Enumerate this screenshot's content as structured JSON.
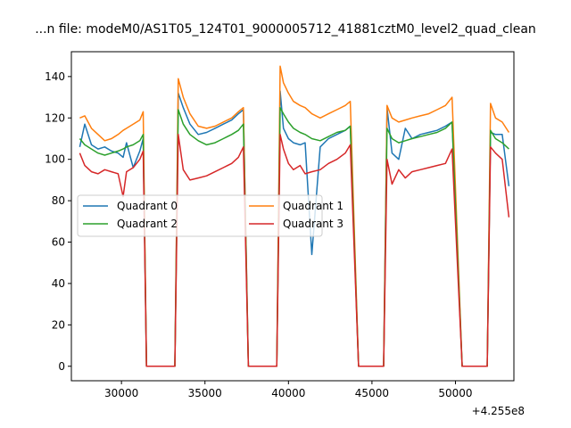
{
  "chart_data": {
    "type": "line",
    "title": "...n file: modeM0/AS1T05_124T01_9000005712_41881cztM0_level2_quad_clean",
    "xlabel": "",
    "ylabel": "",
    "x_offset_label": "+4.255e8",
    "xlim": [
      27000,
      53500
    ],
    "ylim": [
      -7,
      152
    ],
    "x_ticks": [
      30000,
      35000,
      40000,
      45000,
      50000
    ],
    "x_tick_labels": [
      "30000",
      "35000",
      "40000",
      "45000",
      "50000"
    ],
    "y_ticks": [
      0,
      20,
      40,
      60,
      80,
      100,
      120,
      140
    ],
    "y_tick_labels": [
      "0",
      "20",
      "40",
      "60",
      "80",
      "100",
      "120",
      "140"
    ],
    "grid": false,
    "legend_position": "center-left",
    "series": [
      {
        "name": "Quadrant 0",
        "color": "#1f77b4",
        "x": [
          27500,
          27800,
          28200,
          28600,
          29000,
          29400,
          29800,
          30100,
          30300,
          30700,
          31100,
          31300,
          31500,
          32000,
          32600,
          33000,
          33200,
          33400,
          33700,
          34100,
          34600,
          35100,
          35600,
          36100,
          36600,
          37000,
          37300,
          37600,
          38100,
          38700,
          39300,
          39500,
          39700,
          40000,
          40300,
          40700,
          41000,
          41400,
          41900,
          42400,
          42900,
          43400,
          43700,
          44200,
          44800,
          45400,
          45700,
          45900,
          46200,
          46600,
          47000,
          47400,
          47900,
          48400,
          48900,
          49400,
          49800,
          50400,
          51000,
          51600,
          51900,
          52100,
          52400,
          52800,
          53200
        ],
        "y": [
          106,
          117,
          107,
          105,
          106,
          104,
          103,
          101,
          108,
          96,
          104,
          110,
          0,
          0,
          0,
          0,
          0,
          132,
          125,
          117,
          112,
          113,
          115,
          117,
          119,
          122,
          124,
          0,
          0,
          0,
          0,
          133,
          115,
          110,
          108,
          107,
          108,
          54,
          106,
          110,
          112,
          114,
          116,
          0,
          0,
          0,
          0,
          125,
          103,
          100,
          115,
          110,
          112,
          113,
          114,
          116,
          118,
          0,
          0,
          0,
          0,
          113,
          112,
          112,
          87
        ]
      },
      {
        "name": "Quadrant 1",
        "color": "#ff7f0e",
        "x": [
          27500,
          27800,
          28200,
          28600,
          29000,
          29400,
          29800,
          30100,
          30300,
          30700,
          31100,
          31300,
          31500,
          32000,
          32600,
          33000,
          33200,
          33400,
          33700,
          34100,
          34600,
          35100,
          35600,
          36100,
          36600,
          37000,
          37300,
          37600,
          38100,
          38700,
          39300,
          39500,
          39700,
          40000,
          40300,
          40700,
          41000,
          41400,
          41900,
          42400,
          42900,
          43400,
          43700,
          44200,
          44800,
          45400,
          45700,
          45900,
          46200,
          46600,
          47000,
          47400,
          47900,
          48400,
          48900,
          49400,
          49800,
          50400,
          51000,
          51600,
          51900,
          52100,
          52400,
          52800,
          53200
        ],
        "y": [
          120,
          121,
          115,
          112,
          109,
          110,
          112,
          114,
          115,
          117,
          119,
          123,
          0,
          0,
          0,
          0,
          0,
          139,
          130,
          122,
          116,
          115,
          116,
          118,
          120,
          123,
          125,
          0,
          0,
          0,
          0,
          145,
          137,
          132,
          128,
          126,
          125,
          122,
          120,
          122,
          124,
          126,
          128,
          0,
          0,
          0,
          0,
          126,
          120,
          118,
          119,
          120,
          121,
          122,
          124,
          126,
          130,
          0,
          0,
          0,
          0,
          127,
          120,
          118,
          113
        ]
      },
      {
        "name": "Quadrant 2",
        "color": "#2ca02c",
        "x": [
          27500,
          27800,
          28200,
          28600,
          29000,
          29400,
          29800,
          30100,
          30300,
          30700,
          31100,
          31300,
          31500,
          32000,
          32600,
          33000,
          33200,
          33400,
          33700,
          34100,
          34600,
          35100,
          35600,
          36100,
          36600,
          37000,
          37300,
          37600,
          38100,
          38700,
          39300,
          39500,
          39700,
          40000,
          40300,
          40700,
          41000,
          41400,
          41900,
          42400,
          42900,
          43400,
          43700,
          44200,
          44800,
          45400,
          45700,
          45900,
          46200,
          46600,
          47000,
          47400,
          47900,
          48400,
          48900,
          49400,
          49800,
          50400,
          51000,
          51600,
          51900,
          52100,
          52400,
          52800,
          53200
        ],
        "y": [
          110,
          107,
          105,
          103,
          102,
          103,
          104,
          105,
          106,
          107,
          109,
          112,
          0,
          0,
          0,
          0,
          0,
          124,
          117,
          112,
          109,
          107,
          108,
          110,
          112,
          114,
          117,
          0,
          0,
          0,
          0,
          125,
          122,
          118,
          115,
          113,
          112,
          110,
          109,
          111,
          113,
          114,
          116,
          0,
          0,
          0,
          0,
          115,
          110,
          108,
          109,
          110,
          111,
          112,
          113,
          115,
          118,
          0,
          0,
          0,
          0,
          114,
          110,
          108,
          105
        ]
      },
      {
        "name": "Quadrant 3",
        "color": "#d62728",
        "x": [
          27500,
          27800,
          28200,
          28600,
          29000,
          29400,
          29800,
          30100,
          30300,
          30700,
          31100,
          31300,
          31500,
          32000,
          32600,
          33000,
          33200,
          33400,
          33700,
          34100,
          34600,
          35100,
          35600,
          36100,
          36600,
          37000,
          37300,
          37600,
          38100,
          38700,
          39300,
          39500,
          39700,
          40000,
          40300,
          40700,
          41000,
          41400,
          41900,
          42400,
          42900,
          43400,
          43700,
          44200,
          44800,
          45400,
          45700,
          45900,
          46200,
          46600,
          47000,
          47400,
          47900,
          48400,
          48900,
          49400,
          49800,
          50400,
          51000,
          51600,
          51900,
          52100,
          52400,
          52800,
          53200
        ],
        "y": [
          103,
          97,
          94,
          93,
          95,
          94,
          93,
          82,
          94,
          96,
          100,
          104,
          0,
          0,
          0,
          0,
          0,
          112,
          95,
          90,
          91,
          92,
          94,
          96,
          98,
          101,
          106,
          0,
          0,
          0,
          0,
          112,
          105,
          98,
          95,
          97,
          93,
          94,
          95,
          98,
          100,
          103,
          107,
          0,
          0,
          0,
          0,
          100,
          88,
          95,
          91,
          94,
          95,
          96,
          97,
          98,
          105,
          0,
          0,
          0,
          0,
          106,
          103,
          100,
          72
        ]
      }
    ]
  }
}
